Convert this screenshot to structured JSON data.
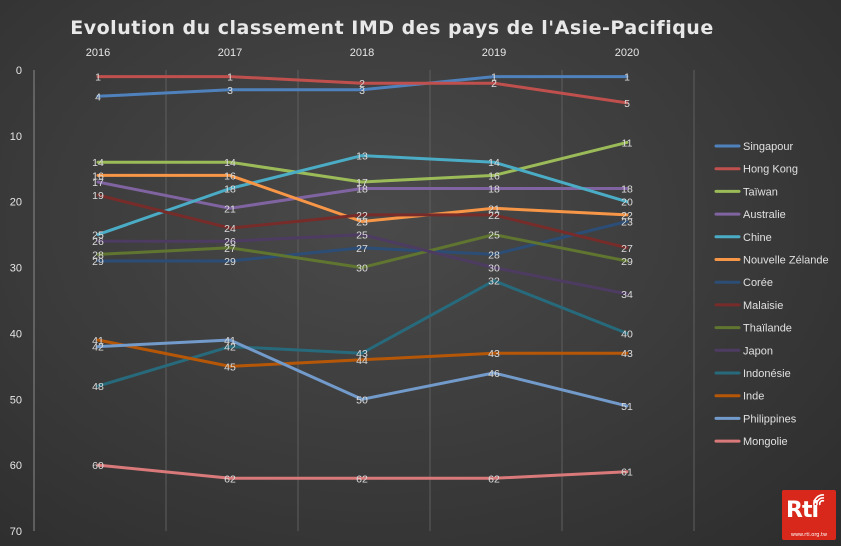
{
  "chart_data": {
    "type": "line",
    "title": "Evolution  du classement  IMD des pays de l'Asie-Pacifique",
    "x": [
      "2016",
      "2017",
      "2018",
      "2019",
      "2020"
    ],
    "ylim": [
      0,
      70
    ],
    "y_inverted": true,
    "y_ticks": [
      0,
      10,
      20,
      30,
      40,
      50,
      60,
      70
    ],
    "grid": "vertical",
    "legend_position": "right",
    "series": [
      {
        "name": "Singapour",
        "color": "#4f81bd",
        "values": [
          4,
          3,
          3,
          1,
          1
        ]
      },
      {
        "name": "Hong Kong",
        "color": "#c0504d",
        "values": [
          1,
          1,
          2,
          2,
          5
        ]
      },
      {
        "name": "Taïwan",
        "color": "#9bbb59",
        "values": [
          14,
          14,
          17,
          16,
          11
        ]
      },
      {
        "name": "Australie",
        "color": "#8064a2",
        "values": [
          17,
          21,
          18,
          18,
          18
        ]
      },
      {
        "name": "Chine",
        "color": "#4bacc6",
        "values": [
          25,
          18,
          13,
          14,
          20
        ]
      },
      {
        "name": "Nouvelle Zélande",
        "color": "#f79646",
        "values": [
          16,
          16,
          23,
          21,
          22
        ]
      },
      {
        "name": "Corée",
        "color": "#2c4d75",
        "values": [
          29,
          29,
          27,
          28,
          23
        ]
      },
      {
        "name": "Malaisie",
        "color": "#772c2a",
        "values": [
          19,
          24,
          22,
          22,
          27
        ]
      },
      {
        "name": "Thaïlande",
        "color": "#5f7530",
        "values": [
          28,
          27,
          30,
          25,
          29
        ]
      },
      {
        "name": "Japon",
        "color": "#4d3b62",
        "values": [
          26,
          26,
          25,
          30,
          34
        ]
      },
      {
        "name": "Indonésie",
        "color": "#276a7c",
        "values": [
          48,
          42,
          43,
          32,
          40
        ]
      },
      {
        "name": "Inde",
        "color": "#b65708",
        "values": [
          41,
          45,
          44,
          43,
          43
        ]
      },
      {
        "name": "Philippines",
        "color": "#729aca",
        "values": [
          42,
          41,
          50,
          46,
          51
        ]
      },
      {
        "name": "Mongolie",
        "color": "#d9797a",
        "values": [
          60,
          62,
          62,
          62,
          61
        ]
      }
    ]
  },
  "logo": {
    "text": "Rti",
    "url": "www.rti.org.tw"
  }
}
